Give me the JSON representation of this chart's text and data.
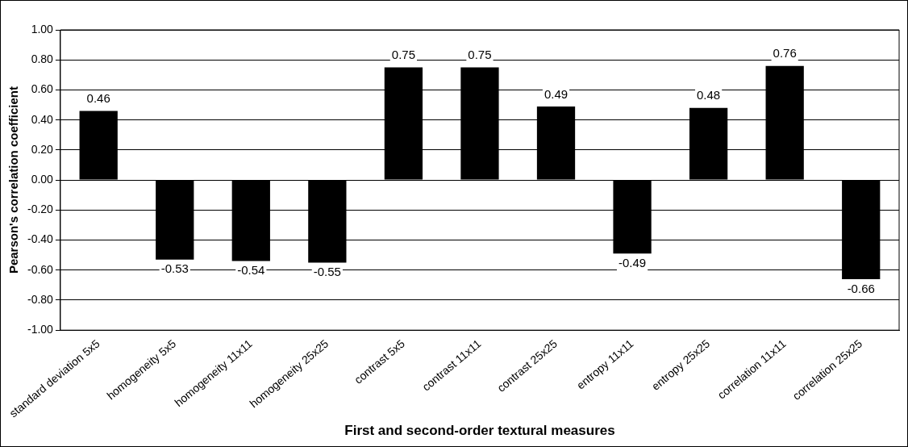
{
  "chart_data": {
    "type": "bar",
    "xlabel": "First and second-order textural measures",
    "ylabel": "Pearson's correlation coefficient",
    "categories": [
      "standard deviation 5x5",
      "homogeneity 5x5",
      "homogeneity 11x11",
      "homogeneity 25x25",
      "contrast 5x5",
      "contrast 11x11",
      "contrast 25x25",
      "entropy 11x11",
      "entropy 25x25",
      "correlation 11x11",
      "correlation 25x25"
    ],
    "values": [
      0.46,
      -0.53,
      -0.54,
      -0.55,
      0.75,
      0.75,
      0.49,
      -0.49,
      0.48,
      0.76,
      -0.66
    ],
    "value_labels": [
      "0.46",
      "-0.53",
      "-0.54",
      "-0.55",
      "0.75",
      "0.75",
      "0.49",
      "-0.49",
      "0.48",
      "0.76",
      "-0.66"
    ],
    "color": "#000000",
    "ylim": [
      -1,
      1
    ],
    "yticks": [
      {
        "value": -1,
        "label": "-1.00"
      },
      {
        "value": -0.8,
        "label": "-0.80"
      },
      {
        "value": -0.6,
        "label": "-0.60"
      },
      {
        "value": -0.4,
        "label": "-0.40"
      },
      {
        "value": -0.2,
        "label": "-0.20"
      },
      {
        "value": 0,
        "label": "0.00"
      },
      {
        "value": 0.2,
        "label": "0.20"
      },
      {
        "value": 0.4,
        "label": "0.40"
      },
      {
        "value": 0.6,
        "label": "0.60"
      },
      {
        "value": 0.8,
        "label": "0.80"
      },
      {
        "value": 1,
        "label": "1.00"
      }
    ],
    "grid": "y",
    "legend": false
  }
}
